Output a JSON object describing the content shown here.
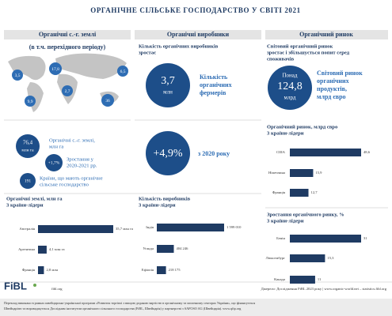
{
  "header": {
    "title": "ОРГАНІЧНЕ СІЛЬСЬКЕ ГОСПОДАРСТВО У СВІТІ 2021"
  },
  "columns": [
    "Органічні с.-г. землі",
    "Органічні виробники",
    "Органічний ринок"
  ],
  "land": {
    "subtitle": "(в т.ч. перехідного періоду)",
    "map_labels": [
      "3,5",
      "17,8",
      "6,5",
      "9,9",
      "2,7",
      "36"
    ],
    "area": {
      "value": "76,4",
      "unit": "млн га",
      "label": [
        "Органічні с.-г. землі,",
        "млн га"
      ]
    },
    "growth": {
      "value": "+1,7%",
      "label": [
        "Зростання у",
        "2020-2021 рр."
      ]
    },
    "countries": {
      "value": "191",
      "label": [
        "Країни, що мають органічне",
        "сільське господарство"
      ]
    }
  },
  "producers": {
    "intro": [
      "Кількість органічних виробників",
      "зростає"
    ],
    "farmers": {
      "value": "3,7",
      "unit": "млн",
      "label": [
        "Кількість",
        "органічних",
        "фермерів"
      ]
    },
    "growth": {
      "value": "+4,9%",
      "label": "з 2020 року"
    }
  },
  "market": {
    "intro": [
      "Світовий органічний ринок",
      "зростає і збільшується попит серед",
      "споживачів"
    ],
    "total": {
      "prefix": "Понад",
      "value": "124,8",
      "unit": "млрд",
      "label": [
        "Світовий ринок",
        "органічних",
        "продуктів,",
        "млрд євро"
      ]
    }
  },
  "chart_data": [
    {
      "type": "bar",
      "title": "Органічні землі, млн га",
      "subtitle": "3 країни-лідери",
      "categories": [
        "Австралія",
        "Аргентина",
        "Франція"
      ],
      "values": [
        35.7,
        4.1,
        2.8
      ],
      "value_labels": [
        "35,7 млн га",
        "4,1 млн га",
        "2,8 млн"
      ],
      "color": "#1f3b63"
    },
    {
      "type": "bar",
      "title": "Кількість виробників",
      "subtitle": "3 країни-лідери",
      "categories": [
        "Індія",
        "Уганда",
        "Ефіопія"
      ],
      "values": [
        1599010,
        404246,
        218175
      ],
      "value_labels": [
        "1 599 010",
        "404 246",
        "218 175"
      ],
      "color": "#1f3b63"
    },
    {
      "type": "bar",
      "title": "Органічний ринок, млрд євро",
      "subtitle": "3 країни-лідери",
      "categories": [
        "США",
        "Німеччина",
        "Франція"
      ],
      "values": [
        48.6,
        15.9,
        12.7
      ],
      "value_labels": [
        "48,6",
        "15,9",
        "12,7"
      ],
      "color": "#1f3b63"
    },
    {
      "type": "bar",
      "title": "Зростання органічного ринку, %",
      "subtitle": "3 країни-лідери",
      "categories": [
        "Бенін",
        "Люксембург",
        "Канада"
      ],
      "values": [
        31,
        15.3,
        11
      ],
      "value_labels": [
        "31",
        "15,3",
        "11"
      ],
      "color": "#1f3b63"
    }
  ],
  "footer": {
    "logo": "FiBL",
    "site": "fibl.org",
    "source": "Джерело: Дослідження FiBL 2023 року | www.organic-world.net – statistics.fibl.org",
    "note": [
      "Переклад виконано в рамках швейцарсько-української програми «Розвиток торгівлі з вищою доданою вартістю в органічному та молочному секторах України», що фінансується",
      "Швейцарією та впроваджується Дослідним інститутом органічного сільського господарства (FiBL, Швейцарія) у партнерстві з SAFOSO AG (Швейцарія). www.qftp.org"
    ]
  }
}
